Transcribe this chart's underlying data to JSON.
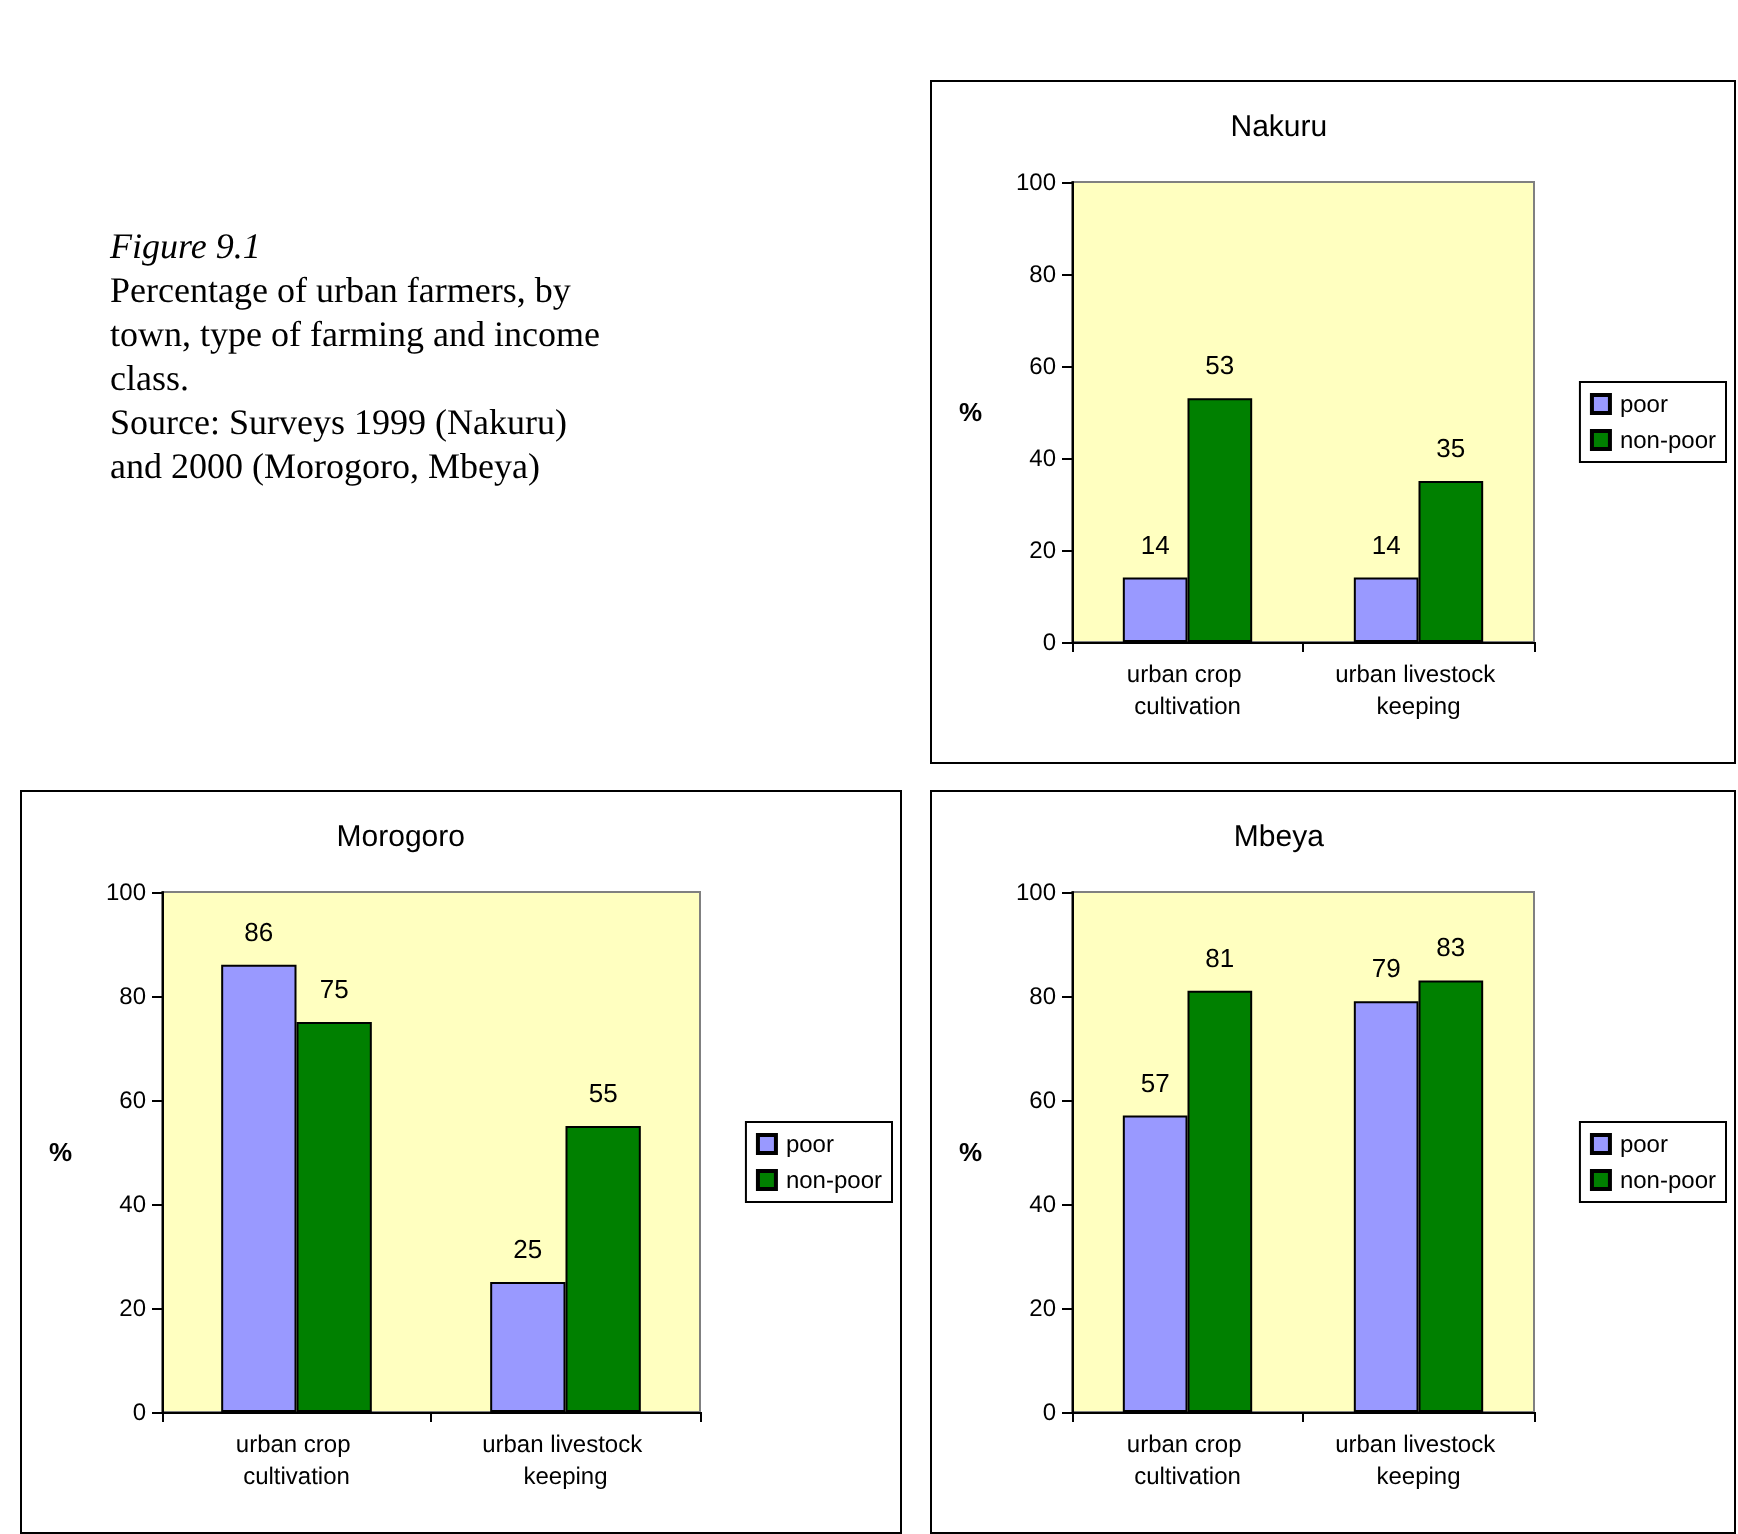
{
  "chart_data": [
    {
      "type": "other",
      "title": "Figure 9.1",
      "annotations": [
        "Percentage of urban farmers, by town, type of farming and income class.",
        "Source: Surveys 1999 (Nakuru) and 2000 (Morogoro, Mbeya)"
      ]
    },
    {
      "type": "bar",
      "title": "Nakuru",
      "ylabel": "%",
      "categories": [
        "urban crop cultivation",
        "urban livestock keeping"
      ],
      "series": [
        {
          "name": "poor",
          "color": "#9999ff",
          "values": [
            14,
            14
          ]
        },
        {
          "name": "non-poor",
          "color": "#008000",
          "values": [
            53,
            35
          ]
        }
      ],
      "ylim": [
        0,
        100
      ],
      "yticks": [
        0,
        20,
        40,
        60,
        80,
        100
      ],
      "grid": false,
      "legend": "right",
      "data_labels": true
    },
    {
      "type": "bar",
      "title": "Morogoro",
      "ylabel": "%",
      "categories": [
        "urban crop cultivation",
        "urban livestock keeping"
      ],
      "series": [
        {
          "name": "poor",
          "color": "#9999ff",
          "values": [
            86,
            25
          ]
        },
        {
          "name": "non-poor",
          "color": "#008000",
          "values": [
            75,
            55
          ]
        }
      ],
      "ylim": [
        0,
        100
      ],
      "yticks": [
        0,
        20,
        40,
        60,
        80,
        100
      ],
      "grid": false,
      "legend": "right",
      "data_labels": true
    },
    {
      "type": "bar",
      "title": "Mbeya",
      "ylabel": "%",
      "categories": [
        "urban crop cultivation",
        "urban livestock keeping"
      ],
      "series": [
        {
          "name": "poor",
          "color": "#9999ff",
          "values": [
            57,
            79
          ]
        },
        {
          "name": "non-poor",
          "color": "#008000",
          "values": [
            81,
            83
          ]
        }
      ],
      "ylim": [
        0,
        100
      ],
      "yticks": [
        0,
        20,
        40,
        60,
        80,
        100
      ],
      "grid": false,
      "legend": "right",
      "data_labels": true
    }
  ]
}
